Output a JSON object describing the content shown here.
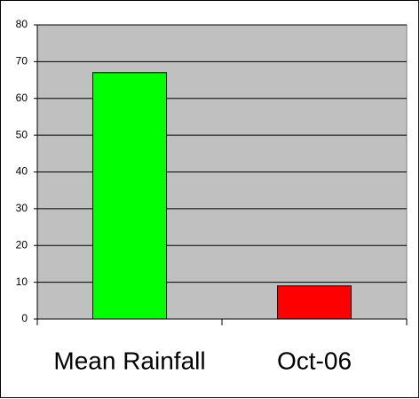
{
  "chart_data": {
    "type": "bar",
    "categories": [
      "Mean Rainfall",
      "Oct-06"
    ],
    "values": [
      67,
      9
    ],
    "colors": [
      "#00ff00",
      "#ff0000"
    ],
    "ylim": [
      0,
      80
    ],
    "yticks": [
      0,
      10,
      20,
      30,
      40,
      50,
      60,
      70,
      80
    ],
    "grid": true
  }
}
